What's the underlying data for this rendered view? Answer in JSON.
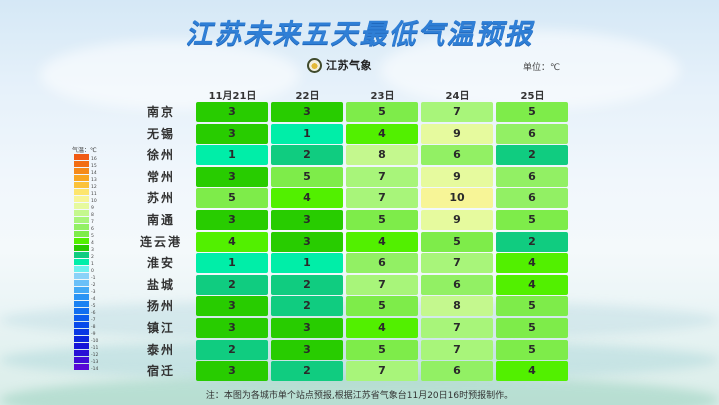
{
  "title": "江苏未来五天最低气温预报",
  "logo": {
    "icon": "jiangsu-meteorology-badge-icon",
    "text": "江苏气象"
  },
  "unit": "单位：℃",
  "note": "注：本图为各城市单个站点预报,根据江苏省气象台11月20日16时预报制作。",
  "legend": {
    "title": "气温：℃",
    "levels": [
      {
        "v": "16",
        "c": "#f05a14"
      },
      {
        "v": "15",
        "c": "#f26e14"
      },
      {
        "v": "14",
        "c": "#f58a1a"
      },
      {
        "v": "13",
        "c": "#f8a622"
      },
      {
        "v": "12",
        "c": "#fbc23a"
      },
      {
        "v": "11",
        "c": "#fde56e"
      },
      {
        "v": "10",
        "c": "#f7f597"
      },
      {
        "v": "9",
        "c": "#e6fa9e"
      },
      {
        "v": "8",
        "c": "#c4f88e"
      },
      {
        "v": "7",
        "c": "#a8f57a"
      },
      {
        "v": "6",
        "c": "#92f064"
      },
      {
        "v": "5",
        "c": "#7eec4a"
      },
      {
        "v": "4",
        "c": "#52f000"
      },
      {
        "v": "3",
        "c": "#28cc00"
      },
      {
        "v": "2",
        "c": "#10cc80"
      },
      {
        "v": "1",
        "c": "#00eea8"
      },
      {
        "v": "0",
        "c": "#6ef0ee"
      },
      {
        "v": "-1",
        "c": "#8ad2f8"
      },
      {
        "v": "-2",
        "c": "#6ac0f8"
      },
      {
        "v": "-3",
        "c": "#44aaf6"
      },
      {
        "v": "-4",
        "c": "#2a94f4"
      },
      {
        "v": "-5",
        "c": "#1a82f2"
      },
      {
        "v": "-6",
        "c": "#106ef0"
      },
      {
        "v": "-7",
        "c": "#0c5cee"
      },
      {
        "v": "-8",
        "c": "#084aea"
      },
      {
        "v": "-9",
        "c": "#0838e4"
      },
      {
        "v": "-10",
        "c": "#0a26dc"
      },
      {
        "v": "-11",
        "c": "#1414d8"
      },
      {
        "v": "-12",
        "c": "#2810d6"
      },
      {
        "v": "-13",
        "c": "#400cd6"
      },
      {
        "v": "-14",
        "c": "#5808d6"
      }
    ]
  },
  "chart_data": {
    "type": "heatmap",
    "title": "江苏未来五天最低气温预报",
    "unit": "℃",
    "columns": [
      "11月21日",
      "22日",
      "23日",
      "24日",
      "25日"
    ],
    "rows": [
      "南京",
      "无锡",
      "徐州",
      "常州",
      "苏州",
      "南通",
      "连云港",
      "淮安",
      "盐城",
      "扬州",
      "镇江",
      "泰州",
      "宿迁"
    ],
    "values": [
      [
        3,
        3,
        5,
        7,
        5
      ],
      [
        3,
        1,
        4,
        9,
        6
      ],
      [
        1,
        2,
        8,
        6,
        2
      ],
      [
        3,
        5,
        7,
        9,
        6
      ],
      [
        5,
        4,
        7,
        10,
        6
      ],
      [
        3,
        3,
        5,
        9,
        5
      ],
      [
        4,
        3,
        4,
        5,
        2
      ],
      [
        1,
        1,
        6,
        7,
        4
      ],
      [
        2,
        2,
        7,
        6,
        4
      ],
      [
        3,
        2,
        5,
        8,
        5
      ],
      [
        3,
        3,
        4,
        7,
        5
      ],
      [
        2,
        3,
        5,
        7,
        5
      ],
      [
        3,
        2,
        7,
        6,
        4
      ]
    ],
    "color_scale": {
      "1": "#00eea8",
      "2": "#10cc80",
      "3": "#28cc00",
      "4": "#52f000",
      "5": "#7eec4a",
      "6": "#92f064",
      "7": "#a8f57a",
      "8": "#c4f88e",
      "9": "#e6fa9e",
      "10": "#f7f597"
    },
    "legend_range": [
      -14,
      16
    ],
    "source_note": "根据江苏省气象台11月20日16时预报制作"
  }
}
